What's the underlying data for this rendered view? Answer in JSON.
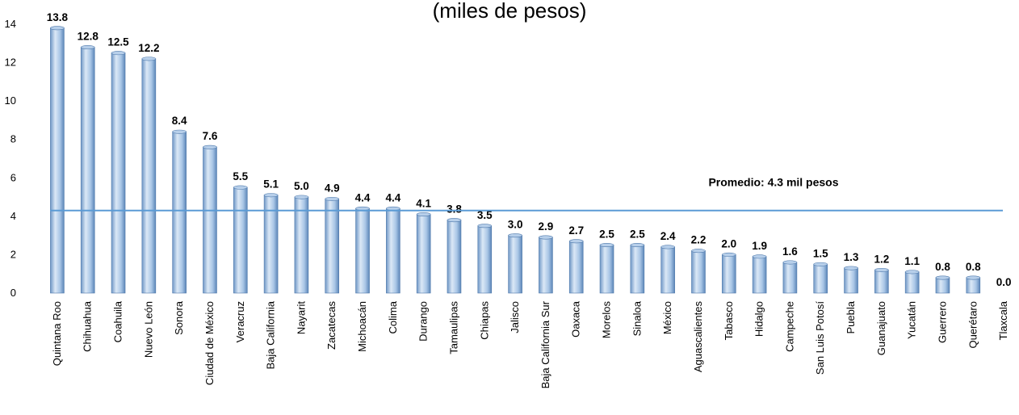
{
  "chart_data": {
    "type": "bar",
    "title": "(miles de pesos)",
    "categories": [
      "Quintana Roo",
      "Chihuahua",
      "Coahuila",
      "Nuevo León",
      "Sonora",
      "Ciudad de México",
      "Veracruz",
      "Baja California",
      "Nayarit",
      "Zacatecas",
      "Michoacán",
      "Colima",
      "Durango",
      "Tamaulipas",
      "Chiapas",
      "Jalisco",
      "Baja California Sur",
      "Oaxaca",
      "Morelos",
      "Sinaloa",
      "México",
      "Aguascalientes",
      "Tabasco",
      "Hidalgo",
      "Campeche",
      "San Luis Potosí",
      "Puebla",
      "Guanajuato",
      "Yucatán",
      "Guerrero",
      "Querétaro",
      "Tlaxcala"
    ],
    "values": [
      13.8,
      12.8,
      12.5,
      12.2,
      8.4,
      7.6,
      5.5,
      5.1,
      5.0,
      4.9,
      4.4,
      4.4,
      4.1,
      3.8,
      3.5,
      3.0,
      2.9,
      2.7,
      2.5,
      2.5,
      2.4,
      2.2,
      2.0,
      1.9,
      1.6,
      1.5,
      1.3,
      1.2,
      1.1,
      0.8,
      0.8,
      0.0
    ],
    "value_labels": [
      "13.8",
      "12.8",
      "12.5",
      "12.2",
      "8.4",
      "7.6",
      "5.5",
      "5.1",
      "5.0",
      "4.9",
      "4.4",
      "4.4",
      "4.1",
      "3.8",
      "3.5",
      "3.0",
      "2.9",
      "2.7",
      "2.5",
      "2.5",
      "2.4",
      "2.2",
      "2.0",
      "1.9",
      "1.6",
      "1.5",
      "1.3",
      "1.2",
      "1.1",
      "0.8",
      "0.8",
      "0.0"
    ],
    "ylim": [
      0,
      14
    ],
    "yticks": [
      "0",
      "2",
      "4",
      "6",
      "8",
      "10",
      "12",
      "14"
    ],
    "average": {
      "value": 4.3,
      "label": "Promedio: 4.3 mil pesos"
    },
    "grid": false,
    "legend": "none",
    "colors": {
      "bar_light": "#dbe8f6",
      "bar_mid": "#9fc0e4",
      "bar_dark": "#5c86b8",
      "average_line": "#5b9bd5"
    }
  }
}
